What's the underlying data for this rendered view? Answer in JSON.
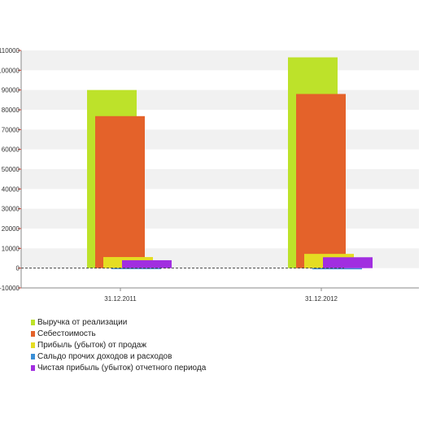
{
  "chart_data": {
    "type": "bar",
    "categories": [
      "31.12.2011",
      "31.12.2012"
    ],
    "series": [
      {
        "name": "Выручка от реализации",
        "color": "#bde22a",
        "values": [
          90000,
          106500
        ]
      },
      {
        "name": "Себестоимость",
        "color": "#e4622a",
        "values": [
          76800,
          88000
        ]
      },
      {
        "name": "Прибыль (убыток) от продаж",
        "color": "#e5dd22",
        "values": [
          5600,
          7200
        ]
      },
      {
        "name": "Сальдо прочих доходов и расходов",
        "color": "#3a8fd6",
        "values": [
          -500,
          -600
        ]
      },
      {
        "name": "Чистая прибыль (убыток) отчетного периода",
        "color": "#a12ee0",
        "values": [
          4000,
          5500
        ]
      }
    ],
    "yticks": [
      "-10000",
      "0",
      "10000",
      "20000",
      "30000",
      "40000",
      "50000",
      "60000",
      "70000",
      "80000",
      "90000",
      "100000",
      "110000"
    ],
    "ylim": [
      -10000,
      110000
    ],
    "title": "",
    "xlabel": "",
    "ylabel": "",
    "legend_position": "bottom-left",
    "grid": "horizontal bands"
  }
}
